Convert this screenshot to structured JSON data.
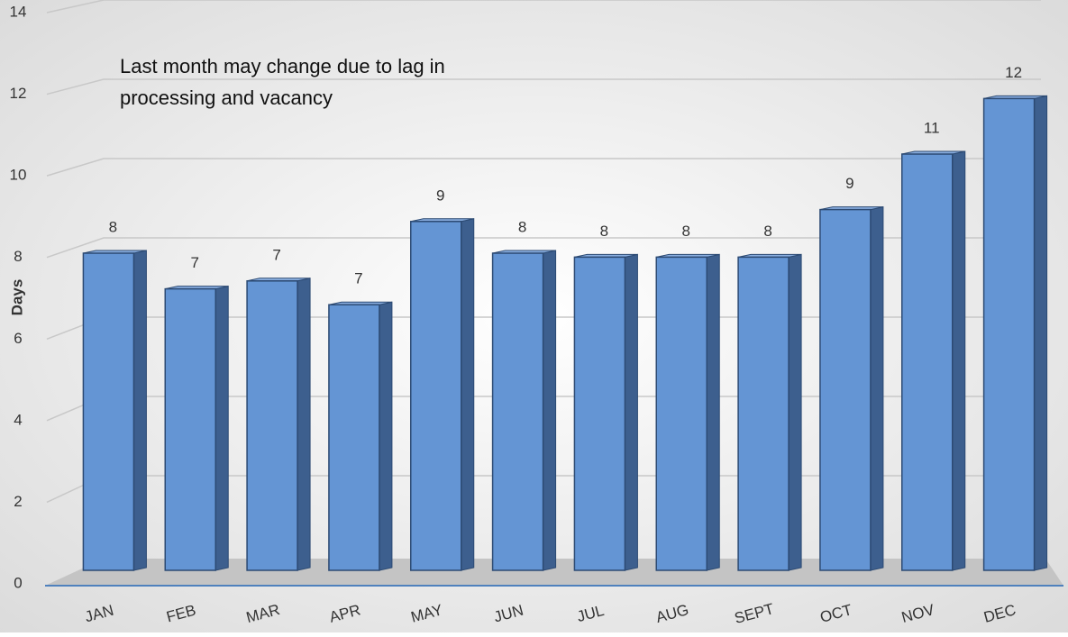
{
  "chart_data": {
    "type": "bar3d",
    "ylabel": "Days",
    "annotation": [
      "Last month may change due to lag in",
      "processing and vacancy"
    ],
    "categories": [
      "JAN",
      "FEB",
      "MAR",
      "APR",
      "MAY",
      "JUN",
      "JUL",
      "AUG",
      "SEPT",
      "OCT",
      "NOV",
      "DEC"
    ],
    "values": [
      8.0,
      7.1,
      7.3,
      6.7,
      8.8,
      8.0,
      7.9,
      7.9,
      7.9,
      9.1,
      10.5,
      11.9
    ],
    "value_labels": [
      "8",
      "7",
      "7",
      "7",
      "9",
      "8",
      "8",
      "8",
      "8",
      "9",
      "11",
      "12"
    ],
    "color": "#6495d4",
    "ylim": [
      0,
      14
    ],
    "yticks": [
      0,
      2,
      4,
      6,
      8,
      10,
      12,
      14
    ],
    "grid": true
  }
}
